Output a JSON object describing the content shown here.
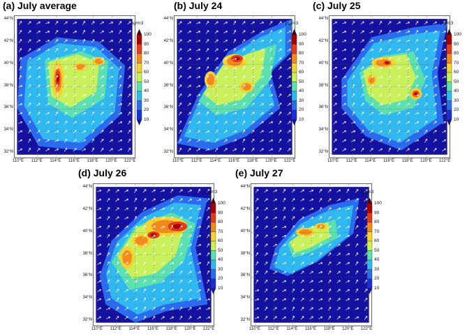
{
  "panels": [
    {
      "title": "(a) July average",
      "intensity": "avg"
    },
    {
      "title": "(b) July 24",
      "intensity": "d24"
    },
    {
      "title": "(c) July 25",
      "intensity": "d25"
    },
    {
      "title": "(d) July 26",
      "intensity": "d26"
    },
    {
      "title": "(e) July 27",
      "intensity": "d27"
    }
  ],
  "lat_labels": [
    "44°N",
    "42°N",
    "40°N",
    "38°N",
    "36°N",
    "34°N",
    "32°N"
  ],
  "lon_labels": [
    "110°E",
    "112°E",
    "114°E",
    "116°E",
    "118°E",
    "120°E",
    "122°E"
  ],
  "colorbar": {
    "unit": "μg/m3",
    "ticks": [
      "100",
      "90",
      "80",
      "70",
      "60",
      "50",
      "40",
      "30",
      "20",
      "10"
    ],
    "colors": [
      "#4a0000",
      "#a80000",
      "#e63a1a",
      "#f28a1c",
      "#f5d230",
      "#c8f05a",
      "#5ce0b0",
      "#30b8f0",
      "#2a6cf0",
      "#1a2ed8",
      "#1410a0"
    ]
  },
  "colors": {
    "background_low": "#1410a0",
    "arrow": "#ffffff"
  }
}
